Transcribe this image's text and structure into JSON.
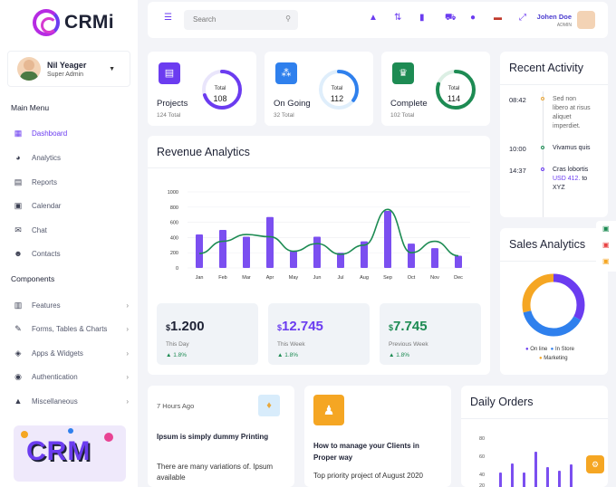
{
  "brand": {
    "name": "CRMi"
  },
  "user": {
    "name": "Nil Yeager",
    "role": "Super Admin"
  },
  "sidebar": {
    "main_label": "Main Menu",
    "main_items": [
      {
        "label": "Dashboard",
        "icon": "grid-icon"
      },
      {
        "label": "Analytics",
        "icon": "pie-chart-icon"
      },
      {
        "label": "Reports",
        "icon": "report-icon"
      },
      {
        "label": "Calendar",
        "icon": "calendar-icon"
      },
      {
        "label": "Chat",
        "icon": "mail-icon"
      },
      {
        "label": "Contacts",
        "icon": "contacts-icon"
      }
    ],
    "components_label": "Components",
    "component_items": [
      {
        "label": "Features",
        "icon": "books-icon"
      },
      {
        "label": "Forms, Tables & Charts",
        "icon": "pen-icon"
      },
      {
        "label": "Apps & Widgets",
        "icon": "cube-icon"
      },
      {
        "label": "Authentication",
        "icon": "fingerprint-icon"
      },
      {
        "label": "Miscellaneous",
        "icon": "alert-icon"
      }
    ],
    "promo_text": "CRM"
  },
  "topbar": {
    "search_placeholder": "Search",
    "user_name": "Johen Doe",
    "user_role": "ADMIN"
  },
  "stats": [
    {
      "label": "Projects",
      "sub": "124 Total",
      "ring_label": "Total",
      "value": "108",
      "color": "#6b3cf0",
      "progress": 0.7
    },
    {
      "label": "On Going",
      "sub": "32 Total",
      "ring_label": "Total",
      "value": "112",
      "color": "#2f80ed",
      "progress": 0.35
    },
    {
      "label": "Complete",
      "sub": "102 Total",
      "ring_label": "Total",
      "value": "114",
      "color": "#1d8b53",
      "progress": 0.8
    }
  ],
  "revenue": {
    "title": "Revenue Analytics",
    "boxes": [
      {
        "currency": "$",
        "value": "1.200",
        "label": "This Day",
        "pct": "1.8%",
        "color": "#1e2235"
      },
      {
        "currency": "$",
        "value": "12.745",
        "label": "This Week",
        "pct": "1.8%",
        "color": "#6b3cf0"
      },
      {
        "currency": "$",
        "value": "7.745",
        "label": "Previous Week",
        "pct": "1.8%",
        "color": "#1d8b53"
      }
    ]
  },
  "chart_data": {
    "type": "bar",
    "categories": [
      "Jan",
      "Feb",
      "Mar",
      "Apr",
      "May",
      "Jun",
      "Jul",
      "Aug",
      "Sep",
      "Oct",
      "Nov",
      "Dec"
    ],
    "series": [
      {
        "type": "bar",
        "values": [
          440,
          500,
          410,
          670,
          220,
          410,
          200,
          350,
          750,
          320,
          260,
          160
        ]
      },
      {
        "type": "line",
        "values": [
          190,
          350,
          440,
          410,
          220,
          320,
          180,
          300,
          770,
          200,
          350,
          160
        ]
      }
    ],
    "ylim": [
      0,
      1000
    ],
    "yticks": [
      0,
      200,
      400,
      600,
      800,
      1000
    ],
    "colors": [
      "#7b4ff0",
      "#1d8b53"
    ]
  },
  "activity": {
    "title": "Recent Activity",
    "items": [
      {
        "time": "08:42",
        "lines": [
          "Sed non",
          "libero at risus",
          "aliquet",
          "imperdiet."
        ],
        "dot": "#e9a83c"
      },
      {
        "time": "10:00",
        "lines": [
          "Vivamus quis"
        ],
        "dot": "#1d8b53"
      },
      {
        "time": "14:37",
        "lines": [
          "Cras lobortis"
        ],
        "link": "USD 412.",
        "tail": "to XYZ",
        "dot": "#6b3cf0"
      }
    ]
  },
  "sales": {
    "title": "Sales Analytics",
    "legend": [
      {
        "label": "On line",
        "color": "#6b3cf0"
      },
      {
        "label": "In Store",
        "color": "#2f80ed"
      },
      {
        "label": "Marketing",
        "color": "#f5a623"
      }
    ],
    "slices": [
      0.33,
      0.38,
      0.29
    ]
  },
  "post1": {
    "time": "7 Hours Ago",
    "title": "Ipsum is simply dummy Printing",
    "text": "There are many variations of. Ipsum available"
  },
  "post2": {
    "title": "How to manage your Clients in Proper way",
    "text": "Top priority project of August 2020"
  },
  "orders": {
    "title": "Daily Orders",
    "yticks": [
      "80",
      "60",
      "40",
      "20"
    ]
  }
}
